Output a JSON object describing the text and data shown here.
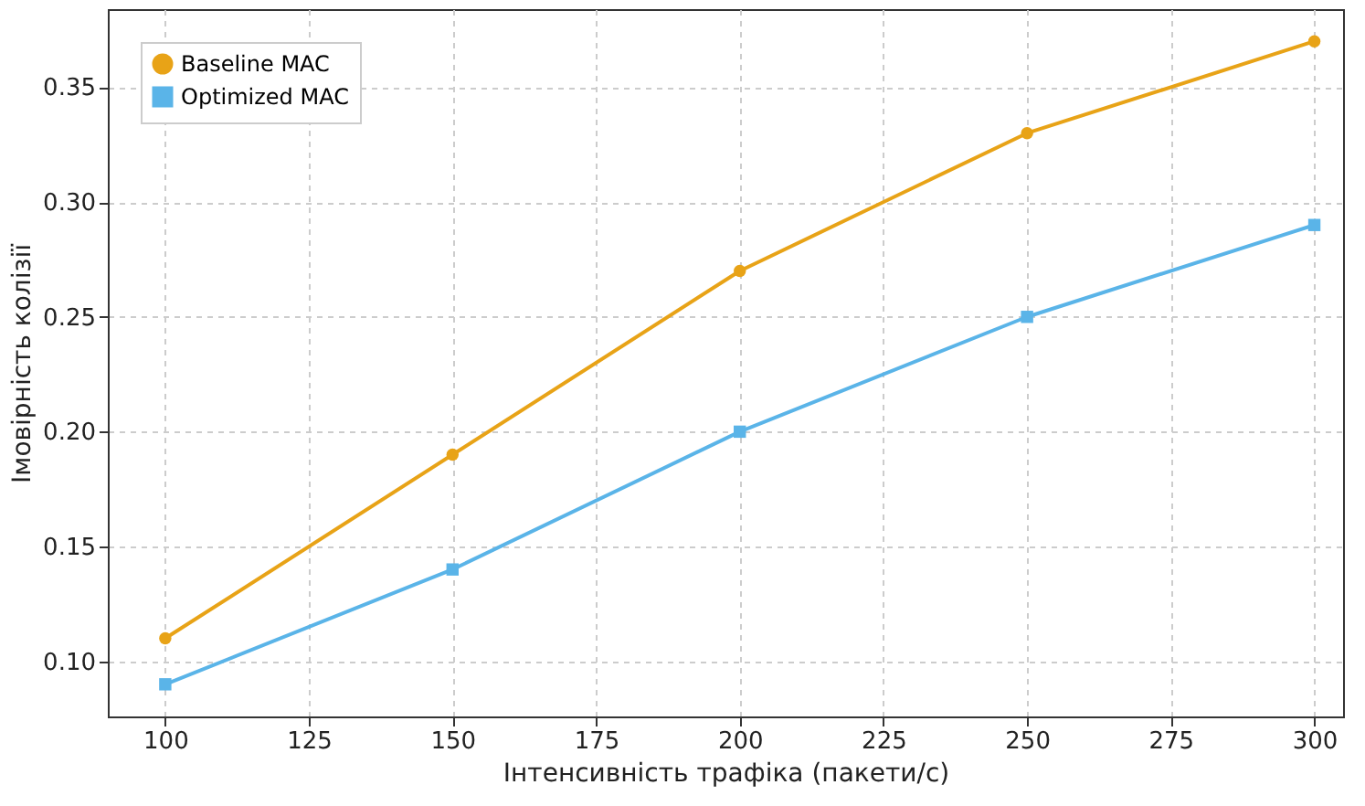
{
  "chart_data": {
    "type": "line",
    "xlabel": "Інтенсивність трафіка (пакети/с)",
    "ylabel": "Імовірність колізії",
    "x": [
      100,
      150,
      200,
      250,
      300
    ],
    "series": [
      {
        "name": "Baseline MAC",
        "color": "#e8a317",
        "marker": "circle",
        "values": [
          0.11,
          0.19,
          0.27,
          0.33,
          0.37
        ]
      },
      {
        "name": "Optimized MAC",
        "color": "#5ab4e8",
        "marker": "square",
        "values": [
          0.09,
          0.14,
          0.2,
          0.25,
          0.29
        ]
      }
    ],
    "xlim": [
      90,
      305
    ],
    "xticks": [
      100,
      125,
      150,
      175,
      200,
      225,
      250,
      275,
      300
    ],
    "ylim": [
      0.076,
      0.384
    ],
    "yticks": [
      {
        "value": 0.1,
        "label": "0.10"
      },
      0.15,
      {
        "value": 0.2,
        "label": "0.20"
      },
      0.25,
      {
        "value": 0.3,
        "label": "0.30"
      },
      0.35
    ],
    "grid": true,
    "legend": "top left",
    "line_style": "solid"
  }
}
